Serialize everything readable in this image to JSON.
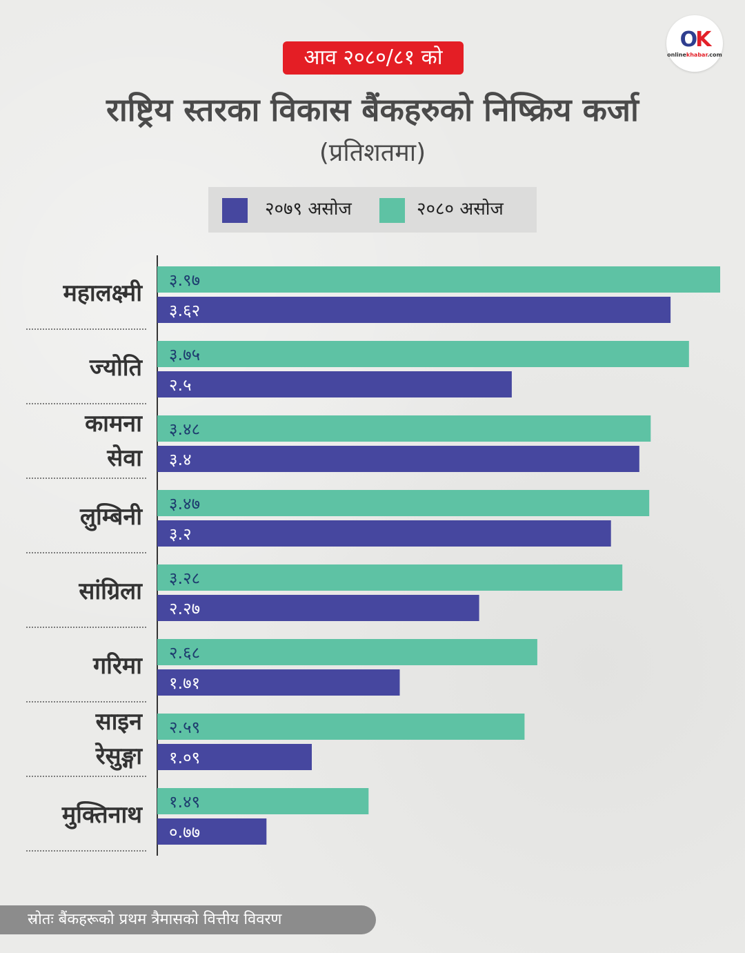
{
  "header": {
    "badge": "आव २०८०/८१ को",
    "title": "राष्ट्रिय स्तरका विकास बैंकहरुको निष्क्रिय कर्जा",
    "subtitle": "(प्रतिशतमा)"
  },
  "logo": {
    "mark_o": "O",
    "mark_k": "K",
    "text_online": "online",
    "text_khabar": "khabar",
    "text_suffix": ".com"
  },
  "legend": [
    {
      "label": "२०७९ असोज",
      "color": "#46479f"
    },
    {
      "label": "२०८० असोज",
      "color": "#5ec2a4"
    }
  ],
  "chart_data": {
    "type": "bar",
    "orientation": "horizontal",
    "title": "राष्ट्रिय स्तरका विकास बैंकहरुको निष्क्रिय कर्जा",
    "subtitle": "(प्रतिशतमा)",
    "categories": [
      [
        "महालक्ष्मी"
      ],
      [
        "ज्योति"
      ],
      [
        "कामना",
        "सेवा"
      ],
      [
        "लुम्बिनी"
      ],
      [
        "सांग्रिला"
      ],
      [
        "गरिमा"
      ],
      [
        "साइन",
        "रेसुङ्गा"
      ],
      [
        "मुक्तिनाथ"
      ]
    ],
    "series": [
      {
        "name": "२०८० असोज",
        "color": "#5ec2a4",
        "values": [
          3.97,
          3.75,
          3.48,
          3.47,
          3.28,
          2.68,
          2.59,
          1.49
        ],
        "labels": [
          "३.९७",
          "३.७५",
          "३.४८",
          "३.४७",
          "३.२८",
          "२.६८",
          "२.५९",
          "१.४९"
        ]
      },
      {
        "name": "२०७९ असोज",
        "color": "#46479f",
        "values": [
          3.62,
          2.5,
          3.4,
          3.2,
          2.27,
          1.71,
          1.09,
          0.77
        ],
        "labels": [
          "३.६२",
          "२.५",
          "३.४",
          "३.२",
          "२.२७",
          "१.७१",
          "१.०९",
          "०.७७"
        ]
      }
    ],
    "xlim": [
      0,
      3.97
    ],
    "grid": false,
    "legend_position": "top"
  },
  "source": "स्रोतः  बैंकहरूको  प्रथम  त्रैमासको  वित्तीय  विवरण"
}
